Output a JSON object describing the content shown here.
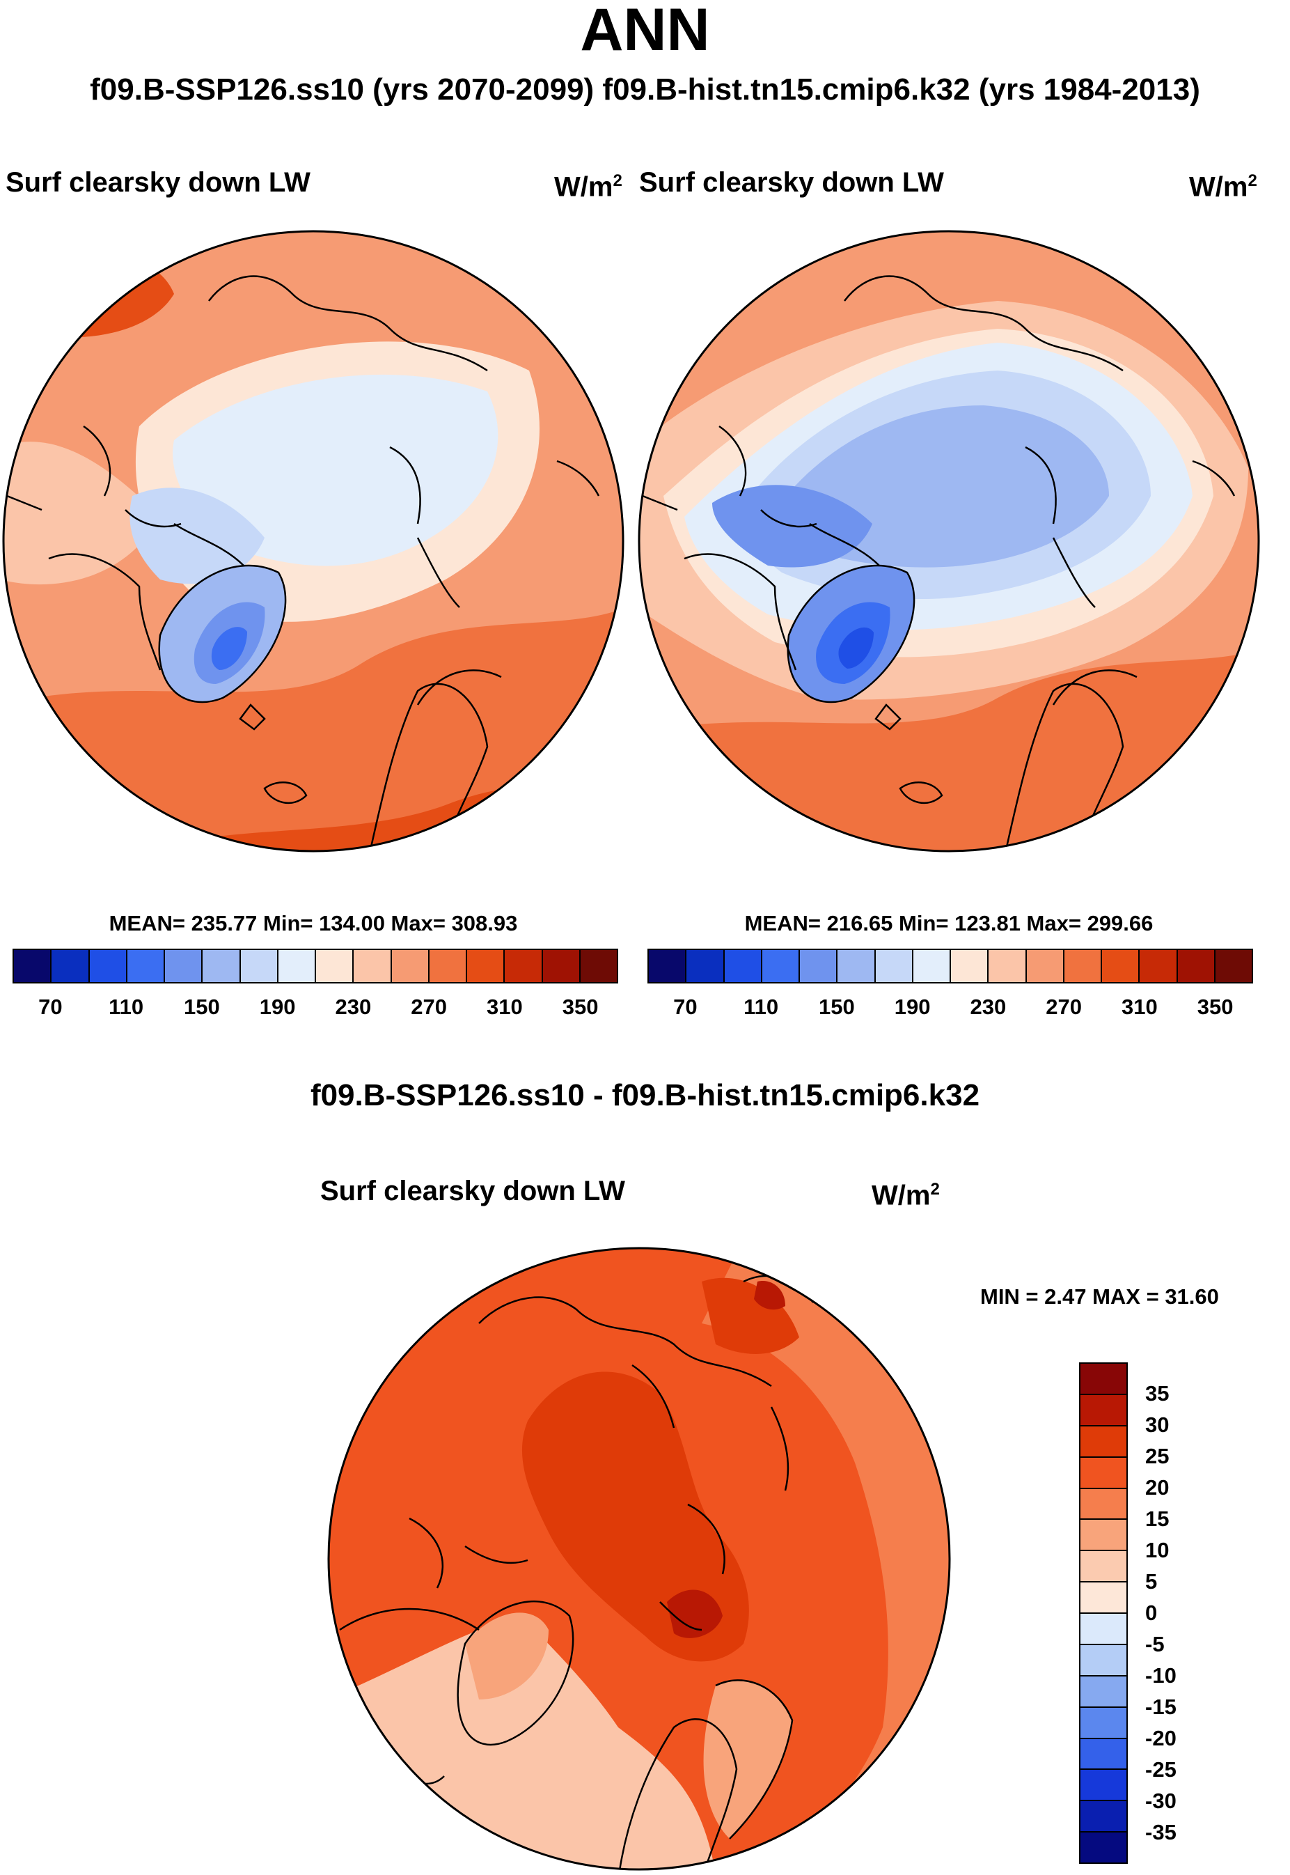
{
  "header": {
    "title": "ANN",
    "subtitle": "f09.B-SSP126.ss10 (yrs 2070-2099)  f09.B-hist.tn15.cmip6.k32 (yrs 1984-2013)",
    "diff_title": "f09.B-SSP126.ss10 - f09.B-hist.tn15.cmip6.k32"
  },
  "panels": {
    "left": {
      "variable": "Surf clearsky down LW",
      "unit_base": "W/m",
      "unit_exp": "2",
      "stats": "MEAN= 235.77  Min= 134.00  Max= 308.93"
    },
    "right": {
      "variable": "Surf clearsky down LW",
      "unit_base": "W/m",
      "unit_exp": "2",
      "stats": "MEAN= 216.65  Min= 123.81  Max= 299.66"
    },
    "diff": {
      "variable": "Surf clearsky down LW",
      "unit_base": "W/m",
      "unit_exp": "2",
      "stats": "MIN =   2.47 MAX =  31.60"
    }
  },
  "colorbar_top": {
    "colors": [
      "#08086b",
      "#0a2fbf",
      "#1f4fe6",
      "#3b6ef2",
      "#6f93ee",
      "#9eb8f2",
      "#c6d8f8",
      "#e3eefb",
      "#fde6d6",
      "#fbc5a9",
      "#f69b73",
      "#f0723f",
      "#e54d15",
      "#c72a06",
      "#9f1203",
      "#6e0b05"
    ],
    "labels": [
      "70",
      "110",
      "150",
      "190",
      "230",
      "270",
      "310",
      "350"
    ]
  },
  "colorbar_diff": {
    "colors": [
      "#880606",
      "#b81804",
      "#df3b08",
      "#f05420",
      "#f57e4d",
      "#f8a47b",
      "#fbcbb0",
      "#fde7d8",
      "#dbe9fb",
      "#b4cdf6",
      "#86a9f0",
      "#5b87ee",
      "#3461ea",
      "#1639da",
      "#0a1fb0",
      "#050a80"
    ],
    "labels": [
      "35",
      "30",
      "25",
      "20",
      "15",
      "10",
      "5",
      "0",
      "-5",
      "-10",
      "-15",
      "-20",
      "-25",
      "-30",
      "-35"
    ]
  }
}
